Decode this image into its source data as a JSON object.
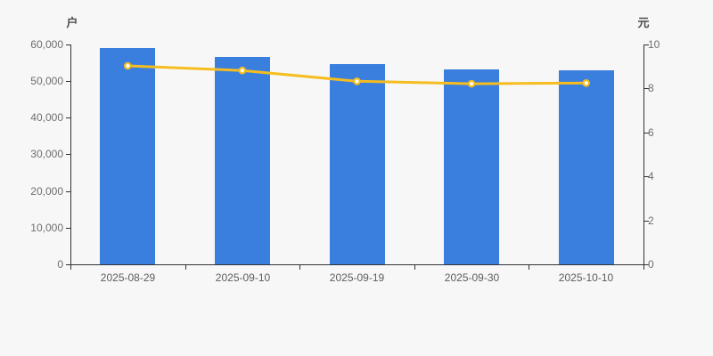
{
  "axis_left": {
    "name": "户",
    "ticks": [
      "0",
      "10,000",
      "20,000",
      "30,000",
      "40,000",
      "50,000",
      "60,000"
    ],
    "min": 0,
    "max": 60000
  },
  "axis_right": {
    "name": "元",
    "ticks": [
      "0",
      "2",
      "4",
      "6",
      "8",
      "10"
    ],
    "min": 0,
    "max": 10
  },
  "chart_data": {
    "type": "bar",
    "categories": [
      "2025-08-29",
      "2025-09-10",
      "2025-09-19",
      "2025-09-30",
      "2025-10-10"
    ],
    "series": [
      {
        "name": "bar-series",
        "type": "bar",
        "y_axis": "left",
        "values": [
          58900,
          56500,
          54500,
          53000,
          52800
        ]
      },
      {
        "name": "line-series",
        "type": "line",
        "y_axis": "right",
        "values": [
          9.01,
          8.8,
          8.31,
          8.2,
          8.23
        ]
      }
    ],
    "title": "",
    "xlabel": "",
    "left_ylabel": "户",
    "right_ylabel": "元",
    "left_ylim": [
      0,
      60000
    ],
    "right_ylim": [
      0,
      10
    ],
    "grid": "off",
    "legend": "none"
  },
  "colors": {
    "background": "#f7f7f7",
    "bar": "#3a7fde",
    "line": "#f5bd1f",
    "marker_fill": "#ffffff",
    "axis": "#333333",
    "tick_label": "#6e6e6e",
    "axis_name": "#4d4d4d"
  }
}
